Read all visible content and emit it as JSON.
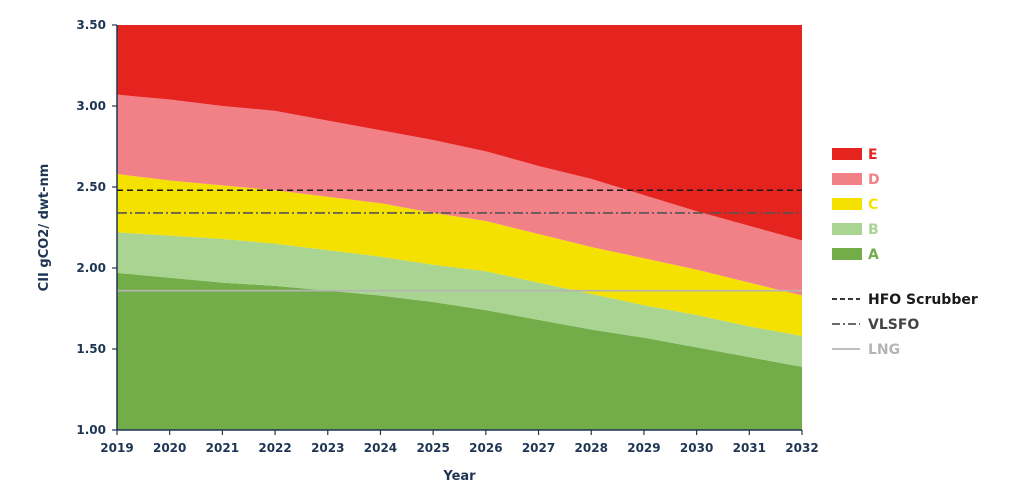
{
  "chart_data": {
    "type": "area",
    "title": "",
    "xlabel": "Year",
    "ylabel": "CII gCO2/ dwt-nm",
    "ylim": [
      1.0,
      3.5
    ],
    "xlim": [
      2019,
      2032
    ],
    "y_ticks": [
      "1.00",
      "1.50",
      "2.00",
      "2.50",
      "3.00",
      "3.50"
    ],
    "x": [
      2019,
      2020,
      2021,
      2022,
      2023,
      2024,
      2025,
      2026,
      2027,
      2028,
      2029,
      2030,
      2031,
      2032
    ],
    "bands": [
      {
        "name": "A",
        "color": "#72ad4a",
        "upper": [
          1.97,
          1.94,
          1.91,
          1.89,
          1.86,
          1.83,
          1.79,
          1.74,
          1.68,
          1.62,
          1.57,
          1.51,
          1.45,
          1.39
        ]
      },
      {
        "name": "B",
        "color": "#aad491",
        "upper": [
          2.22,
          2.2,
          2.18,
          2.15,
          2.11,
          2.07,
          2.02,
          1.98,
          1.91,
          1.84,
          1.77,
          1.71,
          1.64,
          1.58
        ]
      },
      {
        "name": "C",
        "color": "#f5e100",
        "upper": [
          2.58,
          2.54,
          2.51,
          2.48,
          2.44,
          2.4,
          2.34,
          2.29,
          2.21,
          2.13,
          2.06,
          1.99,
          1.91,
          1.83
        ]
      },
      {
        "name": "D",
        "color": "#f18186",
        "upper": [
          3.07,
          3.04,
          3.0,
          2.97,
          2.91,
          2.85,
          2.79,
          2.72,
          2.63,
          2.55,
          2.45,
          2.35,
          2.26,
          2.17
        ]
      },
      {
        "name": "E",
        "color": "#e5231f",
        "upper": [
          3.5,
          3.5,
          3.5,
          3.5,
          3.5,
          3.5,
          3.5,
          3.5,
          3.5,
          3.5,
          3.5,
          3.5,
          3.5,
          3.5
        ]
      }
    ],
    "lines": [
      {
        "name": "HFO Scrubber",
        "value": 2.48,
        "style": "dashed",
        "color": "#1a1a1a"
      },
      {
        "name": "VLSFO",
        "value": 2.34,
        "style": "dash-dot",
        "color": "#555555"
      },
      {
        "name": "LNG",
        "value": 1.86,
        "style": "solid",
        "color": "#b4b4b4"
      }
    ],
    "legend": {
      "placement": "right",
      "bands": [
        {
          "label": "E",
          "color": "#e5231f"
        },
        {
          "label": "D",
          "color": "#f18186"
        },
        {
          "label": "C",
          "color": "#f5e100"
        },
        {
          "label": "B",
          "color": "#aad491"
        },
        {
          "label": "A",
          "color": "#72ad4a"
        }
      ],
      "lines": [
        {
          "label": "HFO Scrubber",
          "color": "#1a1a1a",
          "text_color": "#1a1a1a",
          "style": "dashed"
        },
        {
          "label": "VLSFO",
          "color": "#555555",
          "text_color": "#444444",
          "style": "dash-dot"
        },
        {
          "label": "LNG",
          "color": "#b4b4b4",
          "text_color": "#b4b4b4",
          "style": "solid"
        }
      ]
    },
    "grid": false,
    "axis_color": "#1e3553"
  }
}
